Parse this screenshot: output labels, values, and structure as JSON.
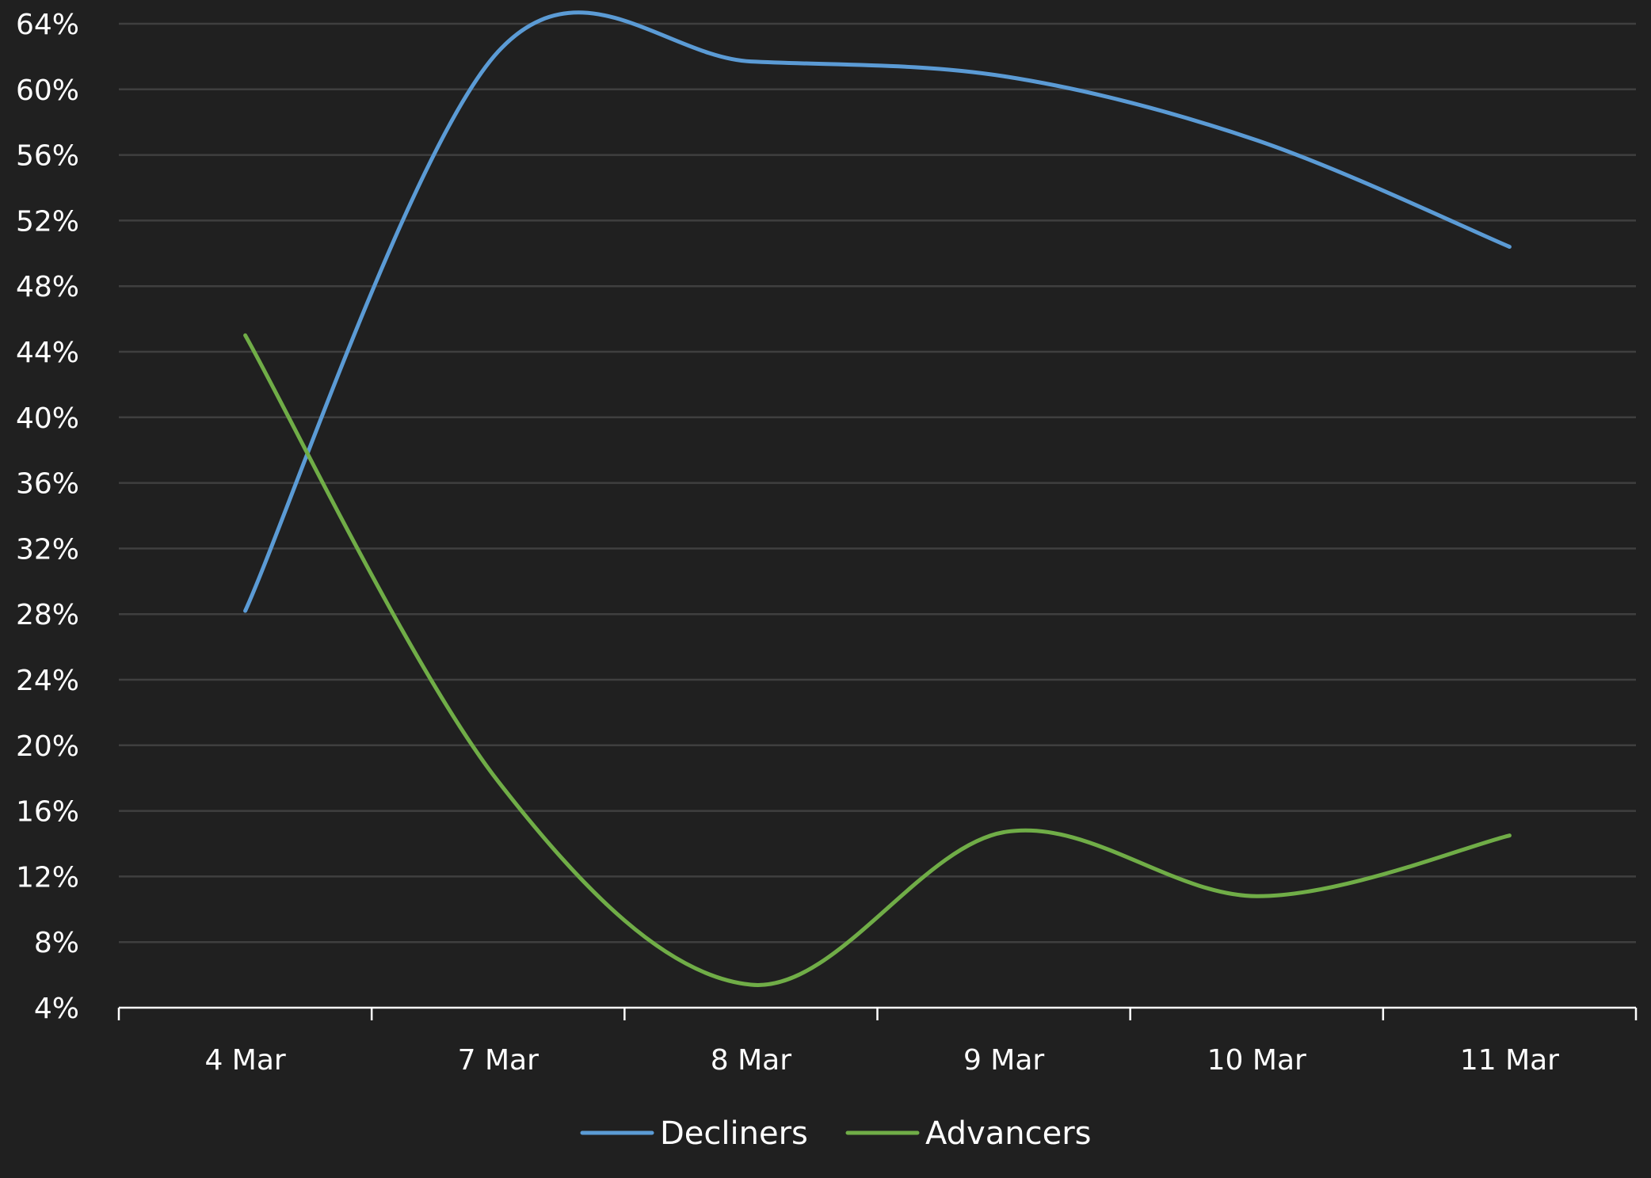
{
  "chart_data": {
    "type": "line",
    "title": "",
    "xlabel": "",
    "ylabel": "",
    "categories": [
      "4 Mar",
      "7 Mar",
      "8 Mar",
      "9 Mar",
      "10 Mar",
      "11 Mar"
    ],
    "ylim": [
      4,
      64
    ],
    "ytick_step": 4,
    "ytick_suffix": "%",
    "grid": true,
    "smooth": true,
    "legend_position": "bottom",
    "series": [
      {
        "name": "Decliners",
        "color": "#5b9bd5",
        "values": [
          28.2,
          62.3,
          61.7,
          60.8,
          56.9,
          50.4
        ]
      },
      {
        "name": "Advancers",
        "color": "#70ad47",
        "values": [
          45.0,
          17.8,
          5.4,
          14.7,
          10.8,
          14.5
        ]
      }
    ],
    "colors": {
      "background": "#202020",
      "gridline": "#3f3f3f",
      "axis": "#ffffff",
      "text": "#ffffff"
    }
  }
}
